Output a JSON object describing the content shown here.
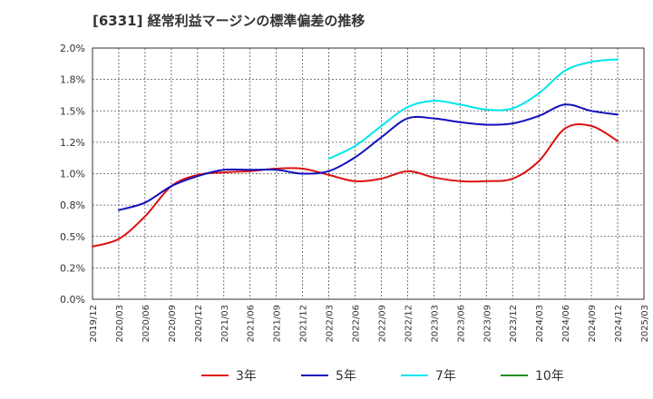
{
  "chart_data": {
    "type": "line",
    "title": "[6331]  経常利益マージンの標準偏差の推移",
    "xlabel": "",
    "ylabel": "",
    "ylim": [
      0,
      2.0
    ],
    "y_ticks": [
      "0.0%",
      "0.2%",
      "0.5%",
      "0.8%",
      "1.0%",
      "1.2%",
      "1.5%",
      "1.8%",
      "2.0%"
    ],
    "x_ticks": [
      "2019/12",
      "2020/03",
      "2020/06",
      "2020/09",
      "2020/12",
      "2021/03",
      "2021/06",
      "2021/09",
      "2021/12",
      "2022/03",
      "2022/06",
      "2022/09",
      "2022/12",
      "2023/03",
      "2023/06",
      "2023/09",
      "2023/12",
      "2024/03",
      "2024/06",
      "2024/09",
      "2024/12",
      "2025/03"
    ],
    "grid": true,
    "legend_position": "bottom",
    "series": [
      {
        "name": "3年",
        "color": "#dd1111",
        "points": [
          [
            "2019/12",
            0.42
          ],
          [
            "2020/03",
            0.48
          ],
          [
            "2020/06",
            0.66
          ],
          [
            "2020/09",
            0.9
          ],
          [
            "2020/12",
            0.99
          ],
          [
            "2021/03",
            1.01
          ],
          [
            "2021/06",
            1.02
          ],
          [
            "2021/09",
            1.04
          ],
          [
            "2021/12",
            1.04
          ],
          [
            "2022/03",
            0.99
          ],
          [
            "2022/06",
            0.94
          ],
          [
            "2022/09",
            0.96
          ],
          [
            "2022/12",
            1.02
          ],
          [
            "2023/03",
            0.97
          ],
          [
            "2023/06",
            0.94
          ],
          [
            "2023/09",
            0.94
          ],
          [
            "2023/12",
            0.96
          ],
          [
            "2024/03",
            1.1
          ],
          [
            "2024/06",
            1.36
          ],
          [
            "2024/09",
            1.38
          ],
          [
            "2024/12",
            1.26
          ]
        ]
      },
      {
        "name": "5年",
        "color": "#1111bb",
        "points": [
          [
            "2020/03",
            0.71
          ],
          [
            "2020/06",
            0.77
          ],
          [
            "2020/09",
            0.9
          ],
          [
            "2020/12",
            0.98
          ],
          [
            "2021/03",
            1.03
          ],
          [
            "2021/06",
            1.03
          ],
          [
            "2021/09",
            1.03
          ],
          [
            "2021/12",
            1.0
          ],
          [
            "2022/03",
            1.02
          ],
          [
            "2022/06",
            1.13
          ],
          [
            "2022/09",
            1.29
          ],
          [
            "2022/12",
            1.44
          ],
          [
            "2023/03",
            1.44
          ],
          [
            "2023/06",
            1.41
          ],
          [
            "2023/09",
            1.39
          ],
          [
            "2023/12",
            1.4
          ],
          [
            "2024/03",
            1.46
          ],
          [
            "2024/06",
            1.55
          ],
          [
            "2024/09",
            1.5
          ],
          [
            "2024/12",
            1.47
          ]
        ]
      },
      {
        "name": "7年",
        "color": "#00e5ee",
        "points": [
          [
            "2022/03",
            1.12
          ],
          [
            "2022/06",
            1.22
          ],
          [
            "2022/09",
            1.38
          ],
          [
            "2022/12",
            1.53
          ],
          [
            "2023/03",
            1.58
          ],
          [
            "2023/06",
            1.55
          ],
          [
            "2023/09",
            1.51
          ],
          [
            "2023/12",
            1.52
          ],
          [
            "2024/03",
            1.64
          ],
          [
            "2024/06",
            1.82
          ],
          [
            "2024/09",
            1.89
          ],
          [
            "2024/12",
            1.91
          ]
        ]
      },
      {
        "name": "10年",
        "color": "#228b22",
        "points": []
      }
    ]
  }
}
